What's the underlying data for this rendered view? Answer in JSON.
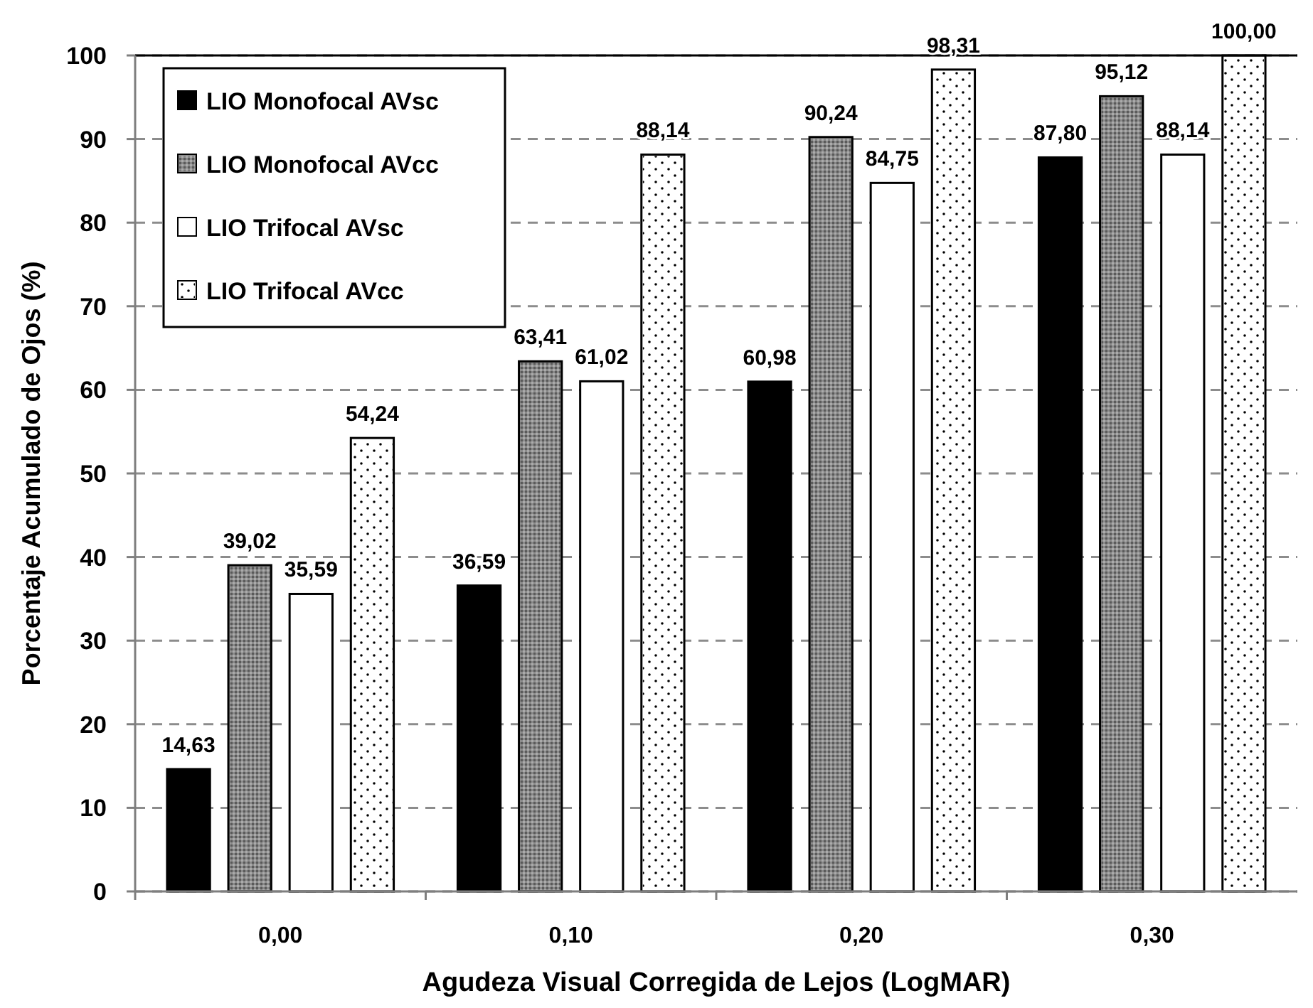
{
  "chart_data": {
    "type": "bar",
    "xlabel": "Agudeza Visual Corregida de Lejos (LogMAR)",
    "ylabel": "Porcentaje Acumulado de Ojos (%)",
    "categories": [
      "0,00",
      "0,10",
      "0,20",
      "0,30"
    ],
    "series": [
      {
        "name": "LIO Monofocal AVsc",
        "color": "#000000",
        "values": [
          14.63,
          36.59,
          60.98,
          87.8
        ],
        "value_labels": [
          "14,63",
          "36,59",
          "60,98",
          "87,80"
        ]
      },
      {
        "name": "LIO Monofocal AVcc",
        "color": "#8a8a8a",
        "values": [
          39.02,
          63.41,
          90.24,
          95.12
        ],
        "value_labels": [
          "39,02",
          "63,41",
          "90,24",
          "95,12"
        ]
      },
      {
        "name": "LIO Trifocal AVsc",
        "color": "#ffffff",
        "values": [
          35.59,
          61.02,
          84.75,
          88.14
        ],
        "value_labels": [
          "35,59",
          "61,02",
          "84,75",
          "88,14"
        ]
      },
      {
        "name": "LIO Trifocal AVcc",
        "color": "#ffffff",
        "values": [
          54.24,
          88.14,
          98.31,
          100.0
        ],
        "value_labels": [
          "54,24",
          "88,14",
          "98,31",
          "100,00"
        ]
      }
    ],
    "ylim": [
      0,
      100
    ],
    "yticks": [
      0,
      10,
      20,
      30,
      40,
      50,
      60,
      70,
      80,
      90,
      100
    ],
    "grid": "y",
    "legend": "top left"
  }
}
